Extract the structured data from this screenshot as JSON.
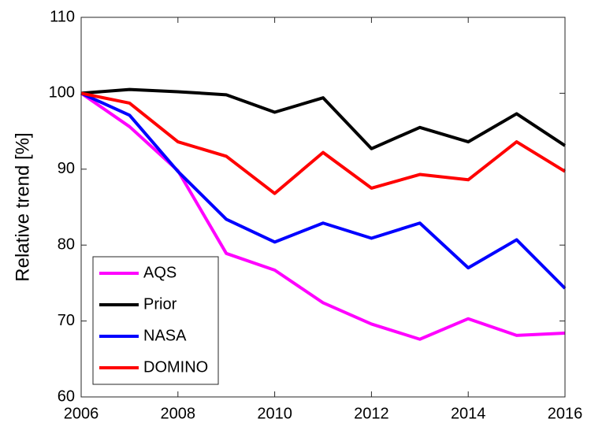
{
  "chart_data": {
    "type": "line",
    "y_label": "Relative trend [%]",
    "x": [
      2006,
      2007,
      2008,
      2009,
      2010,
      2011,
      2012,
      2013,
      2014,
      2015,
      2016
    ],
    "series": [
      {
        "name": "AQS",
        "color": "#ff00ff",
        "values": [
          100,
          95.6,
          89.8,
          78.9,
          76.7,
          72.4,
          69.6,
          67.6,
          70.3,
          68.1,
          68.4
        ]
      },
      {
        "name": "Prior",
        "color": "#000000",
        "values": [
          100,
          100.5,
          100.2,
          99.8,
          97.5,
          99.4,
          92.7,
          95.5,
          93.6,
          97.3,
          93.1
        ]
      },
      {
        "name": "NASA",
        "color": "#0000ff",
        "values": [
          100,
          97.1,
          89.7,
          83.4,
          80.4,
          82.9,
          80.9,
          82.9,
          77.0,
          80.7,
          74.3
        ]
      },
      {
        "name": "DOMINO",
        "color": "#ff0000",
        "values": [
          100,
          98.7,
          93.6,
          91.7,
          86.8,
          92.2,
          87.5,
          89.3,
          88.6,
          93.6,
          89.7
        ]
      }
    ],
    "xlim": [
      2006,
      2016
    ],
    "xticks": [
      2006,
      2008,
      2010,
      2012,
      2014,
      2016
    ],
    "ylim": [
      60,
      110
    ],
    "yticks": [
      60,
      70,
      80,
      90,
      100,
      110
    ],
    "legend": "lower-left"
  }
}
